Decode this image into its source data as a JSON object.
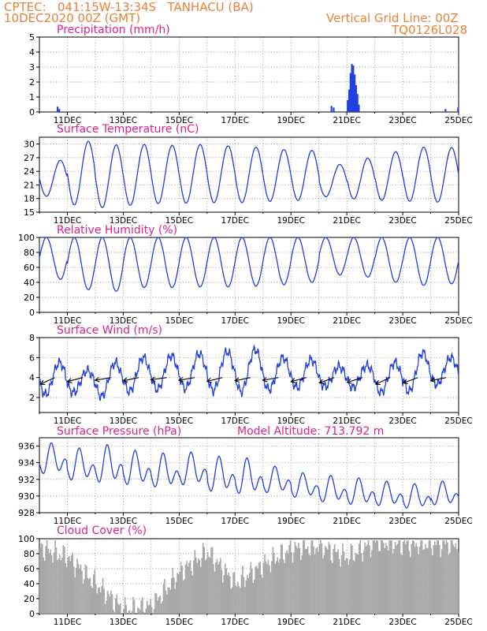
{
  "header": {
    "line1": "CPTEC:   041:15W-13:34S   TANHACU (BA)",
    "line2": "10DEC2020 00Z (GMT)",
    "right1": "Vertical Grid Line: 00Z",
    "right2": "TQ0126L028"
  },
  "colors": {
    "header": "#e8823a",
    "title": "#e0208a",
    "series": "#2040e0",
    "wind_arrow": "#000000",
    "cloud": "#a8a8a8"
  },
  "chart_data": [
    {
      "type": "bar",
      "title": "Precipitation (mm/h)",
      "ylim": [
        0,
        5
      ],
      "yticks": [
        0,
        1,
        2,
        3,
        4,
        5
      ],
      "xlim": [
        0,
        15
      ],
      "xticks": [
        "11DEC",
        "13DEC",
        "15DEC",
        "17DEC",
        "19DEC",
        "21DEC",
        "23DEC",
        "25DEC"
      ],
      "x": [
        0.62,
        0.68,
        10.42,
        10.5,
        11.0,
        11.05,
        11.1,
        11.15,
        11.2,
        11.25,
        11.3,
        11.35,
        11.4,
        14.5,
        14.95
      ],
      "values": [
        0.35,
        0.2,
        0.4,
        0.3,
        0.8,
        1.5,
        2.6,
        3.2,
        3.1,
        2.5,
        1.8,
        1.2,
        0.5,
        0.2,
        0.3
      ]
    },
    {
      "type": "line",
      "title": "Surface Temperature (nC)",
      "ylim": [
        15,
        31.5
      ],
      "yticks": [
        15,
        18,
        21,
        24,
        27,
        30
      ],
      "xlim": [
        0,
        15
      ],
      "xticks": [
        "11DEC",
        "13DEC",
        "15DEC",
        "17DEC",
        "19DEC",
        "21DEC",
        "23DEC",
        "25DEC"
      ],
      "day_max": [
        26.4,
        30.6,
        29.8,
        29.9,
        29.7,
        29.9,
        29.6,
        29.3,
        28.8,
        28.6,
        25.5,
        26.9,
        28.3,
        29.3,
        29.2
      ],
      "day_min": [
        18.5,
        16.6,
        16.0,
        16.5,
        16.9,
        17.0,
        17.1,
        17.1,
        17.4,
        17.6,
        18.4,
        17.9,
        17.6,
        17.4,
        17.2
      ]
    },
    {
      "type": "line",
      "title": "Relative Humidity (%)",
      "ylim": [
        0,
        100
      ],
      "yticks": [
        0,
        20,
        40,
        60,
        80,
        100
      ],
      "xlim": [
        0,
        15
      ],
      "xticks": [
        "11DEC",
        "13DEC",
        "15DEC",
        "17DEC",
        "19DEC",
        "21DEC",
        "23DEC",
        "25DEC"
      ],
      "day_max": [
        100,
        100,
        100,
        100,
        100,
        100,
        100,
        100,
        100,
        100,
        100,
        100,
        100,
        100,
        100
      ],
      "day_min": [
        44,
        30,
        28,
        33,
        33,
        34,
        34,
        35,
        37,
        40,
        50,
        47,
        40,
        36,
        38
      ]
    },
    {
      "type": "line",
      "title": "Surface Wind (m/s)",
      "ylim": [
        0.5,
        8
      ],
      "yticks": [
        2,
        4,
        6,
        8
      ],
      "xlim": [
        0,
        15
      ],
      "xticks": [
        "11DEC",
        "13DEC",
        "15DEC",
        "17DEC",
        "19DEC",
        "21DEC",
        "23DEC",
        "25DEC"
      ],
      "day_max": [
        5.5,
        4.7,
        5.5,
        6.0,
        6.2,
        6.4,
        6.6,
        6.8,
        6.0,
        5.8,
        5.1,
        5.2,
        5.5,
        6.5,
        6.0
      ],
      "day_min": [
        2.3,
        2.5,
        2.1,
        2.6,
        2.8,
        2.9,
        2.7,
        2.6,
        2.8,
        3.0,
        3.1,
        3.0,
        2.5,
        2.6,
        3.3
      ]
    },
    {
      "type": "line",
      "title": "Surface Pressure (hPa)",
      "annotation": "Model Altitude: 713.792 m",
      "ylim": [
        928,
        937
      ],
      "yticks": [
        928,
        930,
        932,
        934,
        936
      ],
      "xlim": [
        0,
        15
      ],
      "xticks": [
        "11DEC",
        "13DEC",
        "15DEC",
        "17DEC",
        "19DEC",
        "21DEC",
        "23DEC",
        "25DEC"
      ],
      "day_max": [
        936.4,
        935.8,
        936.2,
        935.5,
        935.2,
        935.3,
        934.8,
        934.6,
        933.6,
        932.8,
        932.5,
        932.2,
        931.8,
        931.5,
        931.8
      ],
      "day_min": [
        932.0,
        931.2,
        930.8,
        930.6,
        930.3,
        930.6,
        929.8,
        929.5,
        929.8,
        929.3,
        928.7,
        928.4,
        928.3,
        928.0,
        928.4
      ]
    },
    {
      "type": "bar",
      "title": "Cloud Cover (%)",
      "ylim": [
        0,
        100
      ],
      "yticks": [
        0,
        20,
        40,
        60,
        80,
        100
      ],
      "xlim": [
        0,
        15
      ],
      "xticks": [
        "11DEC",
        "13DEC",
        "15DEC",
        "17DEC",
        "19DEC",
        "21DEC",
        "23DEC",
        "25DEC"
      ],
      "daily_cover": [
        88,
        75,
        40,
        5,
        10,
        55,
        82,
        40,
        65,
        86,
        90,
        75,
        96,
        92,
        93,
        93
      ]
    }
  ]
}
